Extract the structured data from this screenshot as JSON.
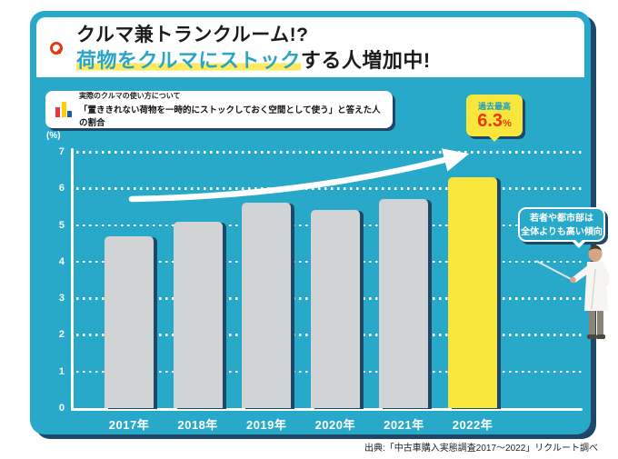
{
  "header": {
    "title_line1": "クルマ兼トランクルーム!?",
    "title_line2_highlight": "荷物をクルマにストック",
    "title_line2_rest": "する人増加中!"
  },
  "legend": {
    "line1": "実際のクルマの使い方について",
    "line2": "「置ききれない荷物を一時的にストックしておく空間として使う」と答えた人の割合"
  },
  "callout": {
    "label": "過去最高",
    "value": "6.3",
    "unit": "%"
  },
  "speech_bubble": {
    "line1": "若者や都市部は",
    "line2": "全体よりも高い傾向"
  },
  "source": "出典:「中古車購入実態調査2017〜2022」リクルート調べ",
  "chart_data": {
    "type": "bar",
    "title": "実際のクルマの使い方について「置ききれない荷物を一時的にストックしておく空間として使う」と答えた人の割合",
    "categories": [
      "2017年",
      "2018年",
      "2019年",
      "2020年",
      "2021年",
      "2022年"
    ],
    "values": [
      4.7,
      5.1,
      5.6,
      5.4,
      5.7,
      6.3
    ],
    "ylabel": "(%)",
    "ylim": [
      0,
      7
    ],
    "yticks": [
      0,
      1,
      2,
      3,
      4,
      5,
      6,
      7
    ],
    "grid": "horizontal-dotted-white",
    "legend_position": "none",
    "highlight_index": 5,
    "annotation": "過去最高 6.3%(2022年)",
    "bar_color": "#d2d3d5",
    "highlight_color": "#f9e63c",
    "trend_arrow": "white-curved-arrow-upward"
  },
  "colors": {
    "panel_teal": "#29a9c9",
    "shadow_navy": "#1d4868",
    "accent_red": "#e8380d",
    "accent_yellow": "#f9e63c",
    "title_teal": "#29a5c5",
    "bar_gray": "#d2d3d5",
    "background": "#ffffff"
  }
}
